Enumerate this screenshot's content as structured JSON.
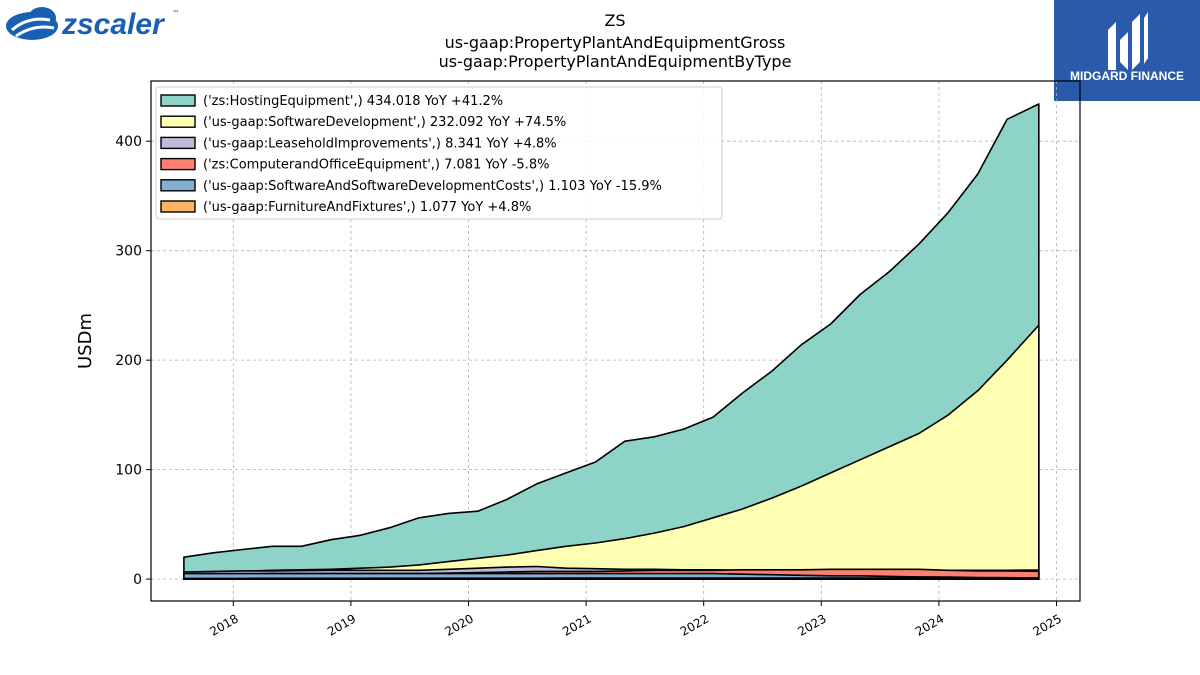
{
  "brand_left": {
    "name": "zscaler",
    "mark": "™"
  },
  "brand_right": {
    "name": "MIDGARD FINANCE"
  },
  "chart_data": {
    "type": "area",
    "title": [
      "ZS",
      "us-gaap:PropertyPlantAndEquipmentGross",
      "us-gaap:PropertyPlantAndEquipmentByType"
    ],
    "xlabel": "",
    "ylabel": "USDm",
    "xlim": [
      2017.3,
      2025.2
    ],
    "ylim": [
      -20,
      455
    ],
    "yticks": [
      0,
      100,
      200,
      300,
      400
    ],
    "xticks": [
      2018,
      2019,
      2020,
      2021,
      2022,
      2023,
      2024,
      2025
    ],
    "grid": true,
    "legend_position": "top-left",
    "stacked": false,
    "x": [
      2017.58,
      2017.83,
      2018.08,
      2018.33,
      2018.58,
      2018.83,
      2019.08,
      2019.33,
      2019.58,
      2019.83,
      2020.08,
      2020.33,
      2020.58,
      2020.83,
      2021.08,
      2021.33,
      2021.58,
      2021.83,
      2022.08,
      2022.33,
      2022.58,
      2022.83,
      2023.08,
      2023.33,
      2023.58,
      2023.83,
      2024.08,
      2024.33,
      2024.58,
      2024.85
    ],
    "series": [
      {
        "name": "('zs:HostingEquipment',) 434.018 YoY +41.2%",
        "color": "#8dd3c7",
        "values": [
          20,
          24,
          27,
          30,
          30,
          36,
          40,
          47,
          56,
          60,
          62,
          73,
          87,
          97,
          107,
          126,
          130,
          137,
          148,
          170,
          190,
          214,
          233,
          260,
          281,
          306,
          335,
          370,
          420,
          434
        ]
      },
      {
        "name": "('us-gaap:SoftwareDevelopment',) 232.092 YoY +74.5%",
        "color": "#ffffb3",
        "values": [
          5,
          6,
          7,
          8,
          8.5,
          9,
          10,
          11,
          13,
          16,
          19,
          22,
          26,
          30,
          33,
          37,
          42,
          48,
          56,
          64,
          74,
          85,
          97,
          109,
          121,
          133,
          150,
          172,
          200,
          232
        ]
      },
      {
        "name": "('us-gaap:LeaseholdImprovements',) 8.341 YoY +4.8%",
        "color": "#bebada",
        "values": [
          6.5,
          7,
          7.5,
          7.5,
          7.8,
          8,
          8,
          8,
          8,
          9,
          10,
          11,
          11.5,
          10,
          9.5,
          9,
          9,
          8.5,
          8.5,
          8,
          8,
          8,
          8,
          8,
          8,
          8,
          8,
          8,
          8,
          8.3
        ]
      },
      {
        "name": "('zs:ComputerandOfficeEquipment',) 7.081 YoY -5.8%",
        "color": "#fb8072",
        "values": [
          4,
          4,
          4.5,
          5,
          5,
          5,
          5,
          5,
          5,
          5.5,
          6,
          6.5,
          7,
          7,
          7,
          7.5,
          8,
          8,
          8,
          8.5,
          8.5,
          8.5,
          9,
          9,
          9,
          9,
          8,
          7.5,
          7.5,
          7.1
        ]
      },
      {
        "name": "('us-gaap:SoftwareAndSoftwareDevelopmentCosts',) 1.103 YoY -15.9%",
        "color": "#80b1d3",
        "values": [
          5,
          5,
          5,
          5,
          5,
          5,
          5,
          5,
          5,
          5,
          5,
          5,
          5,
          5,
          5,
          5,
          5,
          5,
          5,
          4.5,
          4,
          3.5,
          3,
          3,
          2.5,
          2,
          1.8,
          1.5,
          1.3,
          1.1
        ]
      },
      {
        "name": "('us-gaap:FurnitureAndFixtures',) 1.077 YoY +4.8%",
        "color": "#fdb462",
        "values": [
          0.6,
          0.6,
          0.6,
          0.7,
          0.7,
          0.7,
          0.7,
          0.8,
          0.8,
          0.8,
          0.8,
          0.8,
          0.8,
          0.9,
          0.9,
          0.9,
          0.9,
          0.9,
          0.9,
          1,
          1,
          1,
          1,
          1,
          1,
          1,
          1,
          1,
          1,
          1.077
        ]
      }
    ]
  }
}
